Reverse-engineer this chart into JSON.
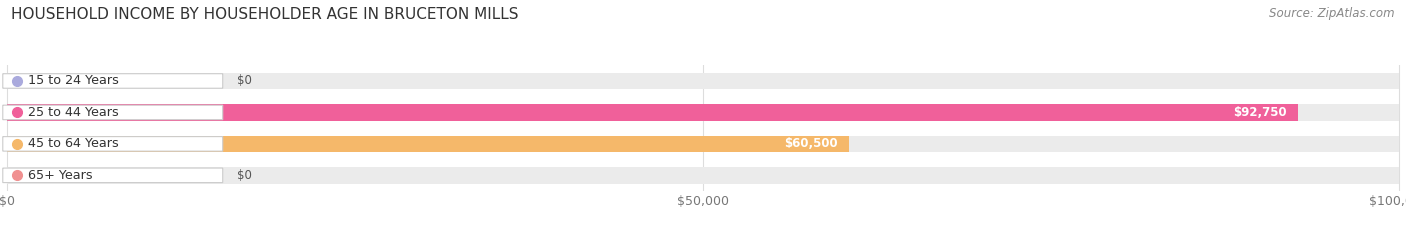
{
  "title": "HOUSEHOLD INCOME BY HOUSEHOLDER AGE IN BRUCETON MILLS",
  "source": "Source: ZipAtlas.com",
  "categories": [
    "15 to 24 Years",
    "25 to 44 Years",
    "45 to 64 Years",
    "65+ Years"
  ],
  "values": [
    0,
    92750,
    60500,
    0
  ],
  "bar_colors": [
    "#aaaadd",
    "#f0609a",
    "#f5b86a",
    "#f09090"
  ],
  "xmax": 100000,
  "x_ticks": [
    0,
    50000,
    100000
  ],
  "x_tick_labels": [
    "$0",
    "$50,000",
    "$100,000"
  ],
  "bar_height": 0.52,
  "background_color": "#ffffff",
  "grid_color": "#dddddd",
  "value_labels": [
    "$0",
    "$92,750",
    "$60,500",
    "$0"
  ],
  "title_fontsize": 11,
  "source_fontsize": 8.5
}
